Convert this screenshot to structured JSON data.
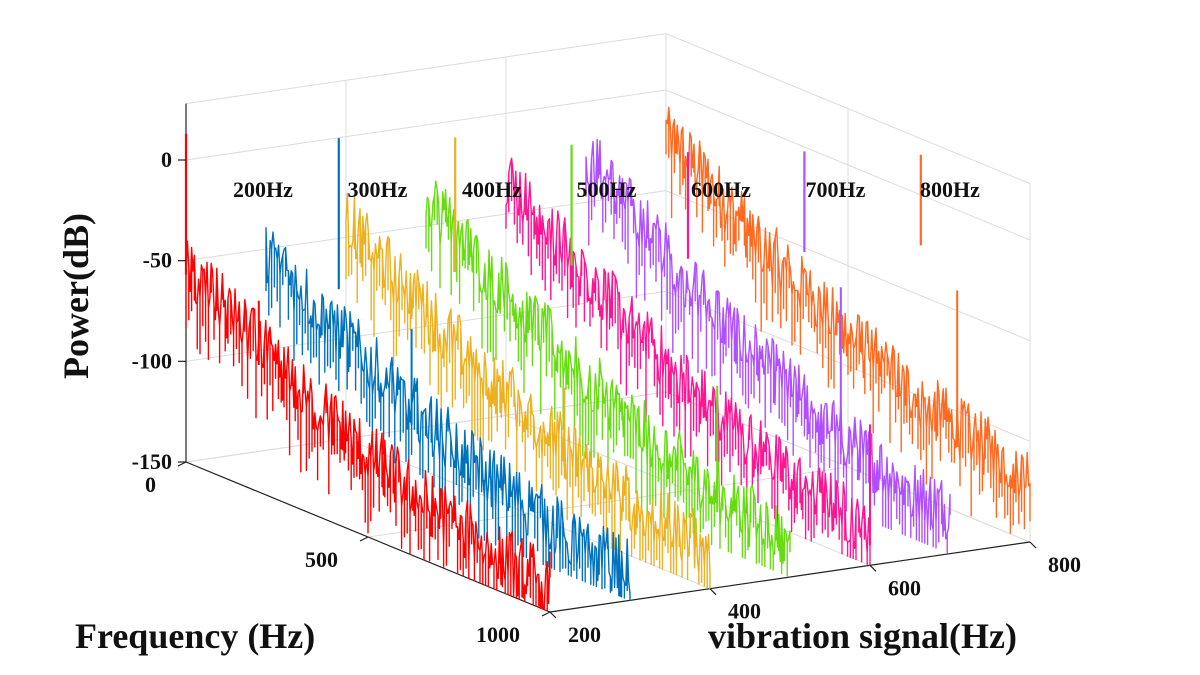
{
  "chart_data": {
    "type": "line",
    "view": "3d-waterfall",
    "title": "",
    "xlabel": "Frequency (Hz)",
    "ylabel": "vibration signal(Hz)",
    "zlabel": "Power(dB)",
    "xlim": [
      0,
      1000
    ],
    "ylim": [
      200,
      800
    ],
    "zlim": [
      -150,
      0
    ],
    "xticks": [
      "0",
      "500",
      "1000"
    ],
    "yticks": [
      "200",
      "400",
      "600",
      "800"
    ],
    "zticks": [
      "0",
      "-50",
      "-100",
      "-150"
    ],
    "grid": true,
    "series": [
      {
        "name": "200Hz",
        "y": 200,
        "color": "#ff0000",
        "peak_hz": 0,
        "peak_db": 13,
        "start_db": -52,
        "end_db": -135,
        "spikes": [
          {
            "x": 200,
            "db": -55
          }
        ]
      },
      {
        "name": "300Hz",
        "y": 300,
        "color": "#0072bd",
        "peak_hz": 200,
        "peak_db": 20,
        "start_db": -50,
        "end_db": -135,
        "spikes": [
          {
            "x": 400,
            "db": -60
          },
          {
            "x": 600,
            "db": -120
          }
        ]
      },
      {
        "name": "400Hz",
        "y": 400,
        "color": "#edb120",
        "peak_hz": 300,
        "peak_db": 22,
        "start_db": -40,
        "end_db": -130,
        "spikes": [
          {
            "x": 600,
            "db": -80
          }
        ]
      },
      {
        "name": "500Hz",
        "y": 500,
        "color": "#66dd11",
        "peak_hz": 400,
        "peak_db": 20,
        "start_db": -35,
        "end_db": -130,
        "spikes": [
          {
            "x": 800,
            "db": -70
          }
        ]
      },
      {
        "name": "600Hz",
        "y": 600,
        "color": "#ff1493",
        "peak_hz": 500,
        "peak_db": 18,
        "start_db": -30,
        "end_db": -130,
        "spikes": [
          {
            "x": 1000,
            "db": -80
          }
        ]
      },
      {
        "name": "700Hz",
        "y": 700,
        "color": "#b04fff",
        "peak_hz": 600,
        "peak_db": 20,
        "start_db": -25,
        "end_db": -128,
        "spikes": [
          {
            "x": 700,
            "db": -40
          }
        ]
      },
      {
        "name": "800Hz",
        "y": 800,
        "color": "#ff6a20",
        "peak_hz": 700,
        "peak_db": 20,
        "start_db": -20,
        "end_db": -115,
        "spikes": [
          {
            "x": 800,
            "db": -40
          }
        ]
      }
    ]
  }
}
